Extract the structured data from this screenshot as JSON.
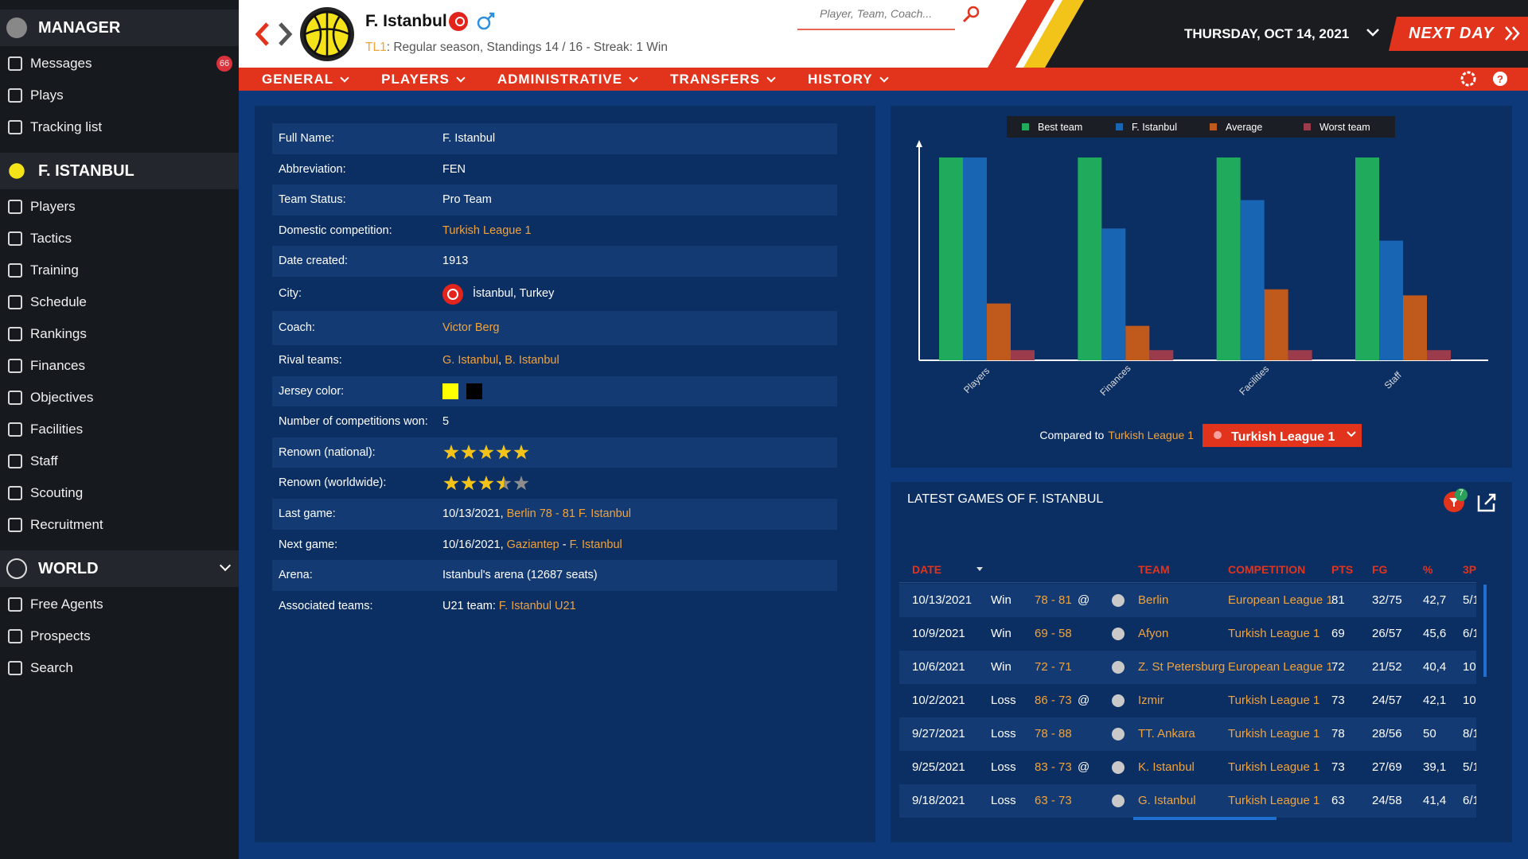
{
  "sidebar": {
    "sections": [
      {
        "title": "MANAGER",
        "items": [
          {
            "label": "Messages",
            "badge": 66
          },
          {
            "label": "Plays"
          },
          {
            "label": "Tracking list"
          }
        ]
      },
      {
        "title": "F. ISTANBUL",
        "items": [
          {
            "label": "Players"
          },
          {
            "label": "Tactics"
          },
          {
            "label": "Training"
          },
          {
            "label": "Schedule"
          },
          {
            "label": "Rankings"
          },
          {
            "label": "Finances"
          },
          {
            "label": "Objectives"
          },
          {
            "label": "Facilities"
          },
          {
            "label": "Staff"
          },
          {
            "label": "Scouting"
          },
          {
            "label": "Recruitment"
          }
        ]
      },
      {
        "title": "WORLD",
        "items": [
          {
            "label": "Free Agents"
          },
          {
            "label": "Prospects"
          },
          {
            "label": "Search"
          }
        ]
      }
    ]
  },
  "header": {
    "team": "F. Istanbul",
    "league_code": "TL1",
    "status": ": Regular season, Standings 14 / 16 - Streak: 1 Win",
    "search_placeholder": "Player, Team, Coach...",
    "date": "THURSDAY, OCT 14, 2021",
    "next_day": "NEXT DAY"
  },
  "nav": [
    "GENERAL",
    "PLAYERS",
    "ADMINISTRATIVE",
    "TRANSFERS",
    "HISTORY"
  ],
  "info": {
    "rows": [
      {
        "label": "Full Name:",
        "value": [
          {
            "text": "F. Istanbul",
            "link": false
          }
        ]
      },
      {
        "label": "Abbreviation:",
        "value": [
          {
            "text": "FEN",
            "link": false
          }
        ]
      },
      {
        "label": "Team Status:",
        "value": [
          {
            "text": "Pro Team",
            "link": false
          }
        ]
      },
      {
        "label": "Domestic competition:",
        "value": [
          {
            "text": "Turkish League 1",
            "link": true
          }
        ]
      },
      {
        "label": "Date created:",
        "value": [
          {
            "text": "1913",
            "link": false
          }
        ]
      },
      {
        "label": "City:",
        "flag": true,
        "value": [
          {
            "text": "İstanbul, Turkey",
            "link": false
          }
        ]
      },
      {
        "label": "Coach:",
        "value": [
          {
            "text": "Victor Berg",
            "link": true
          }
        ]
      },
      {
        "label": "Rival teams:",
        "value": [
          {
            "text": "G. Istanbul",
            "link": true
          },
          {
            "text": ", ",
            "link": false
          },
          {
            "text": "B. Istanbul",
            "link": true
          }
        ]
      },
      {
        "label": "Jersey color:",
        "colors": [
          "#ffff00",
          "#000000"
        ]
      },
      {
        "label": "Number of competitions won:",
        "value": [
          {
            "text": "5",
            "link": false
          }
        ]
      },
      {
        "label": "Renown (national):",
        "stars": 5,
        "max_stars": 5
      },
      {
        "label": "Renown (worldwide):",
        "stars": 3.5,
        "max_stars": 5
      },
      {
        "label": "Last game:",
        "value": [
          {
            "text": "10/13/2021, ",
            "link": false
          },
          {
            "text": "Berlin 78 - 81 F. Istanbul",
            "link": true
          }
        ]
      },
      {
        "label": "Next game:",
        "value": [
          {
            "text": "10/16/2021, ",
            "link": false
          },
          {
            "text": "Gaziantep",
            "link": true
          },
          {
            "text": " - ",
            "link": false
          },
          {
            "text": "F. Istanbul",
            "link": true
          }
        ]
      },
      {
        "label": "Arena:",
        "value": [
          {
            "text": "Istanbul's arena (12687 seats)",
            "link": false
          }
        ]
      },
      {
        "label": "Associated teams:",
        "value": [
          {
            "text": "U21 team: ",
            "link": false
          },
          {
            "text": "F. Istanbul U21",
            "link": true
          }
        ]
      }
    ]
  },
  "chart_data": {
    "type": "bar",
    "categories": [
      "Players",
      "Finances",
      "Facilities",
      "Staff"
    ],
    "series": [
      {
        "name": "Best team",
        "color": "#1faa5c",
        "values": [
          100,
          100,
          100,
          100
        ]
      },
      {
        "name": "F. Istanbul",
        "color": "#1765b3",
        "values": [
          100,
          65,
          79,
          59
        ]
      },
      {
        "name": "Average",
        "color": "#c0591c",
        "values": [
          28,
          17,
          35,
          32
        ]
      },
      {
        "name": "Worst team",
        "color": "#9c3b4c",
        "values": [
          5,
          5,
          5,
          5
        ]
      }
    ],
    "ylim": [
      0,
      100
    ],
    "legend": "top",
    "compared_label": "Compared to",
    "compared_league": "Turkish League 1",
    "dropdown": "Turkish League 1"
  },
  "games": {
    "title": "LATEST GAMES OF F. ISTANBUL",
    "filter_badge": 7,
    "columns": [
      "DATE",
      "TEAM",
      "COMPETITION",
      "PTS",
      "FG",
      "%",
      "3P"
    ],
    "rows": [
      {
        "date": "10/13/2021",
        "result": "Win",
        "score": "78 - 81",
        "venue": "@",
        "team": "Berlin",
        "competition": "European League 1",
        "pts": 81,
        "fg": "32/75",
        "pct": "42,7",
        "three": "5/1"
      },
      {
        "date": "10/9/2021",
        "result": "Win",
        "score": "69 - 58",
        "venue": null,
        "team": "Afyon",
        "competition": "Turkish League 1",
        "pts": 69,
        "fg": "26/57",
        "pct": "45,6",
        "three": "6/1"
      },
      {
        "date": "10/6/2021",
        "result": "Win",
        "score": "72 - 71",
        "venue": null,
        "team": "Z. St Petersburg",
        "competition": "European League 1",
        "pts": 72,
        "fg": "21/52",
        "pct": "40,4",
        "three": "10"
      },
      {
        "date": "10/2/2021",
        "result": "Loss",
        "score": "86 - 73",
        "venue": "@",
        "team": "Izmir",
        "competition": "Turkish League 1",
        "pts": 73,
        "fg": "24/57",
        "pct": "42,1",
        "three": "10"
      },
      {
        "date": "9/27/2021",
        "result": "Loss",
        "score": "78 - 88",
        "venue": null,
        "team": "TT. Ankara",
        "competition": "Turkish League 1",
        "pts": 78,
        "fg": "28/56",
        "pct": "50",
        "three": "8/1"
      },
      {
        "date": "9/25/2021",
        "result": "Loss",
        "score": "83 - 73",
        "venue": "@",
        "team": "K. Istanbul",
        "competition": "Turkish League 1",
        "pts": 73,
        "fg": "27/69",
        "pct": "39,1",
        "three": "5/1"
      },
      {
        "date": "9/18/2021",
        "result": "Loss",
        "score": "63 - 73",
        "venue": null,
        "team": "G. Istanbul",
        "competition": "Turkish League 1",
        "pts": 63,
        "fg": "24/58",
        "pct": "41,4",
        "three": "6/1"
      }
    ]
  }
}
